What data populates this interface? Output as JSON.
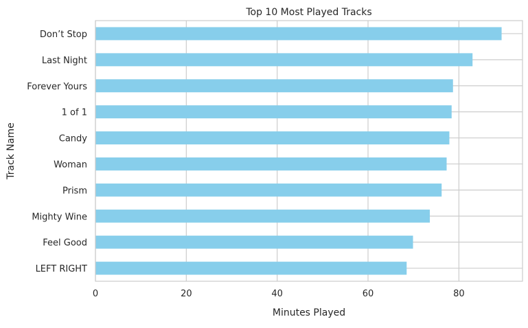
{
  "chart_data": {
    "type": "bar",
    "orientation": "horizontal",
    "title": "Top 10 Most Played Tracks",
    "xlabel": "Minutes Played",
    "ylabel": "Track Name",
    "categories": [
      "Don’t Stop",
      "Last Night",
      "Forever Yours",
      "1 of 1",
      "Candy",
      "Woman",
      "Prism",
      "Mighty Wine",
      "Feel Good",
      "LEFT RIGHT"
    ],
    "values": [
      89.4,
      83.0,
      78.7,
      78.4,
      77.9,
      77.3,
      76.2,
      73.6,
      69.9,
      68.5
    ],
    "xlim": [
      0,
      94
    ],
    "xticks": [
      0,
      20,
      40,
      60,
      80
    ],
    "grid": true,
    "colors": {
      "bar": "#87ceeb",
      "grid": "#cccccc",
      "spine": "#cccccc",
      "text": "#262626"
    }
  }
}
